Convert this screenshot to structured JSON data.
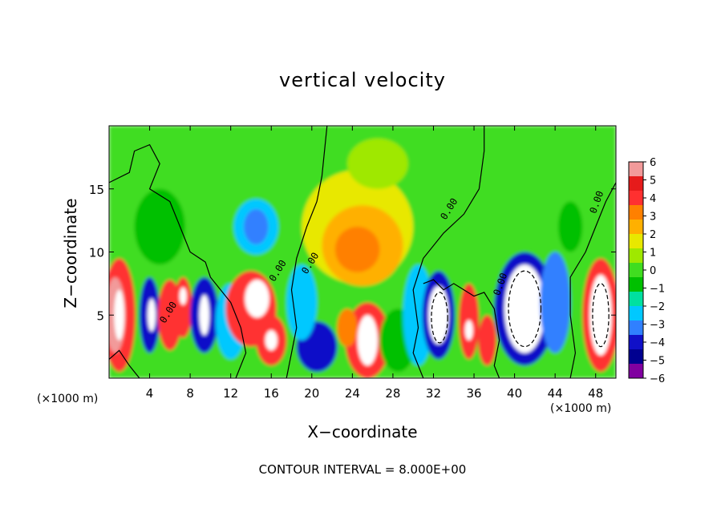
{
  "chart_data": {
    "type": "heatmap",
    "title": "vertical velocity",
    "xlabel": "X−coordinate",
    "ylabel": "Z−coordinate",
    "x_unit_left": "(×1000 m)",
    "x_unit_right": "(×1000 m)",
    "xlim": [
      0,
      50
    ],
    "ylim": [
      0,
      20
    ],
    "x_ticks": [
      4,
      8,
      12,
      16,
      20,
      24,
      28,
      32,
      36,
      40,
      44,
      48
    ],
    "y_ticks": [
      5,
      10,
      15
    ],
    "colorbar": {
      "ticks": [
        "6",
        "5",
        "4",
        "3",
        "2",
        "1",
        "0",
        "−1",
        "−2",
        "−3",
        "−4",
        "−5",
        "−6"
      ],
      "colors": [
        "#f29a9a",
        "#e61b1b",
        "#ff3030",
        "#ff8000",
        "#ffb000",
        "#e8e800",
        "#9fe800",
        "#40dd20",
        "#00c000",
        "#00e0a0",
        "#00c8ff",
        "#3080ff",
        "#1010c8",
        "#000090",
        "#8000a0"
      ]
    },
    "contour_labels": [
      "0.00",
      "0.00",
      "0.00",
      "0.00",
      "0.00",
      "0.00",
      "0.00"
    ],
    "contour_interval_text": "CONTOUR INTERVAL =  8.000E+00"
  }
}
